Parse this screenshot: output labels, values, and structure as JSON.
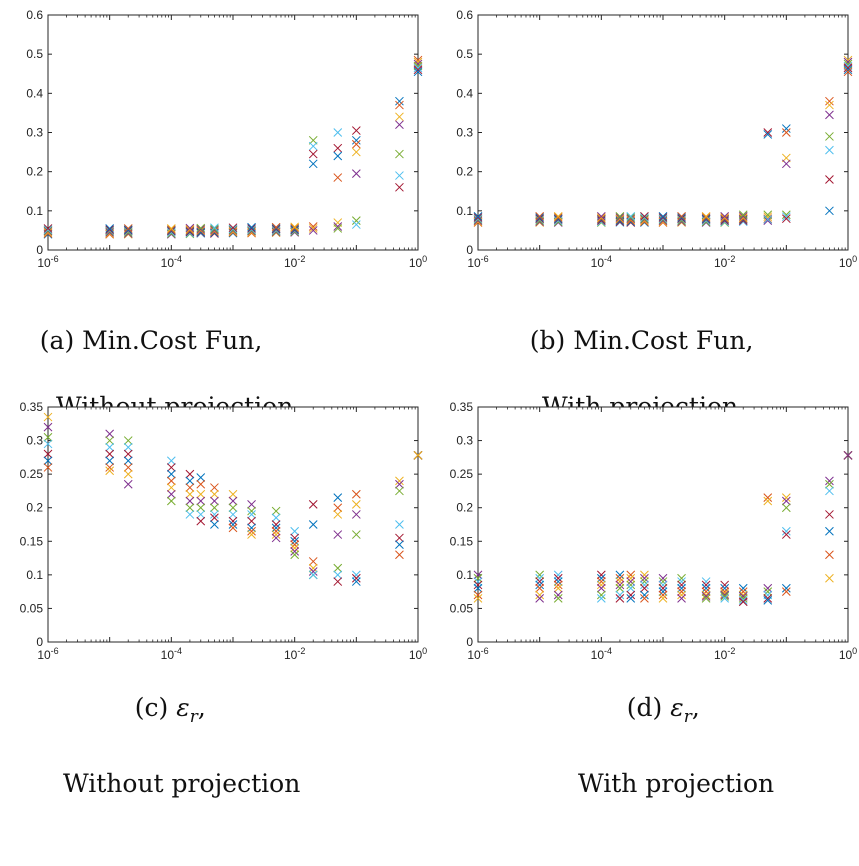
{
  "colors": [
    "#0072BD",
    "#D95319",
    "#EDB120",
    "#7E2F8E",
    "#77AC30",
    "#4DBEEE",
    "#A2142F"
  ],
  "panels": [
    {
      "id": "a",
      "caption": {
        "prefix": "(a) ",
        "line1": "Min.Cost Fun,",
        "line2": "Without projection"
      },
      "chart_data": {
        "type": "scatter",
        "marker": "x",
        "xscale": "log",
        "xlim": [
          1e-06,
          1
        ],
        "ylim": [
          0,
          0.6
        ],
        "xticks": [
          "10-6",
          "10-4",
          "10-2",
          "100"
        ],
        "yticks": [
          "0",
          "0.1",
          "0.2",
          "0.3",
          "0.4",
          "0.5",
          "0.6"
        ],
        "groups": [
          {
            "x": 1e-06,
            "y": [
              0.04,
              0.042,
              0.045,
              0.048,
              0.05,
              0.052,
              0.055
            ]
          },
          {
            "x": 1e-05,
            "y": [
              0.04,
              0.042,
              0.045,
              0.048,
              0.05,
              0.052,
              0.055
            ]
          },
          {
            "x": 2e-05,
            "y": [
              0.04,
              0.042,
              0.045,
              0.048,
              0.05,
              0.052,
              0.055
            ]
          },
          {
            "x": 0.0001,
            "y": [
              0.04,
              0.042,
              0.045,
              0.048,
              0.05,
              0.052,
              0.055
            ]
          },
          {
            "x": 0.0002,
            "y": [
              0.041,
              0.043,
              0.046,
              0.048,
              0.05,
              0.053,
              0.056
            ]
          },
          {
            "x": 0.0003,
            "y": [
              0.042,
              0.044,
              0.046,
              0.049,
              0.051,
              0.053,
              0.056
            ]
          },
          {
            "x": 0.0005,
            "y": [
              0.042,
              0.044,
              0.047,
              0.049,
              0.051,
              0.054,
              0.057
            ]
          },
          {
            "x": 0.001,
            "y": [
              0.043,
              0.045,
              0.047,
              0.05,
              0.052,
              0.054,
              0.057
            ]
          },
          {
            "x": 0.002,
            "y": [
              0.043,
              0.045,
              0.048,
              0.05,
              0.052,
              0.055,
              0.058
            ]
          },
          {
            "x": 0.005,
            "y": [
              0.044,
              0.046,
              0.048,
              0.05,
              0.053,
              0.055,
              0.058
            ]
          },
          {
            "x": 0.01,
            "y": [
              0.045,
              0.047,
              0.049,
              0.051,
              0.053,
              0.056,
              0.059
            ]
          },
          {
            "x": 0.02,
            "y": [
              0.28,
              0.265,
              0.245,
              0.22,
              0.06,
              0.055,
              0.05
            ]
          },
          {
            "x": 0.05,
            "y": [
              0.3,
              0.26,
              0.24,
              0.185,
              0.07,
              0.06,
              0.055
            ]
          },
          {
            "x": 0.1,
            "y": [
              0.305,
              0.28,
              0.27,
              0.25,
              0.195,
              0.075,
              0.065
            ]
          },
          {
            "x": 0.5,
            "y": [
              0.38,
              0.37,
              0.34,
              0.32,
              0.245,
              0.19,
              0.16
            ]
          },
          {
            "x": 1,
            "y": [
              0.485,
              0.48,
              0.475,
              0.47,
              0.465,
              0.46,
              0.455
            ]
          }
        ]
      }
    },
    {
      "id": "b",
      "caption": {
        "prefix": "(b) ",
        "line1": "Min.Cost Fun,",
        "line2": "With projection"
      },
      "chart_data": {
        "type": "scatter",
        "marker": "x",
        "xscale": "log",
        "xlim": [
          1e-06,
          1
        ],
        "ylim": [
          0,
          0.6
        ],
        "xticks": [
          "10-6",
          "10-4",
          "10-2",
          "100"
        ],
        "yticks": [
          "0",
          "0.1",
          "0.2",
          "0.3",
          "0.4",
          "0.5",
          "0.6"
        ],
        "groups": [
          {
            "x": 1e-06,
            "y": [
              0.07,
              0.072,
              0.075,
              0.078,
              0.08,
              0.083,
              0.086
            ]
          },
          {
            "x": 1e-05,
            "y": [
              0.07,
              0.072,
              0.075,
              0.078,
              0.08,
              0.083,
              0.086
            ]
          },
          {
            "x": 2e-05,
            "y": [
              0.07,
              0.072,
              0.075,
              0.078,
              0.08,
              0.083,
              0.086
            ]
          },
          {
            "x": 0.0001,
            "y": [
              0.07,
              0.072,
              0.075,
              0.078,
              0.08,
              0.083,
              0.086
            ]
          },
          {
            "x": 0.0002,
            "y": [
              0.07,
              0.072,
              0.075,
              0.078,
              0.08,
              0.083,
              0.086
            ]
          },
          {
            "x": 0.0003,
            "y": [
              0.07,
              0.072,
              0.075,
              0.078,
              0.08,
              0.083,
              0.086
            ]
          },
          {
            "x": 0.0005,
            "y": [
              0.07,
              0.072,
              0.075,
              0.078,
              0.08,
              0.083,
              0.086
            ]
          },
          {
            "x": 0.001,
            "y": [
              0.07,
              0.072,
              0.075,
              0.078,
              0.08,
              0.083,
              0.086
            ]
          },
          {
            "x": 0.002,
            "y": [
              0.07,
              0.072,
              0.075,
              0.078,
              0.08,
              0.083,
              0.086
            ]
          },
          {
            "x": 0.005,
            "y": [
              0.07,
              0.072,
              0.075,
              0.078,
              0.08,
              0.083,
              0.086
            ]
          },
          {
            "x": 0.01,
            "y": [
              0.07,
              0.072,
              0.075,
              0.078,
              0.08,
              0.083,
              0.086
            ]
          },
          {
            "x": 0.02,
            "y": [
              0.072,
              0.075,
              0.078,
              0.08,
              0.083,
              0.086,
              0.09
            ]
          },
          {
            "x": 0.05,
            "y": [
              0.3,
              0.295,
              0.08,
              0.085,
              0.075,
              0.09,
              0.078
            ]
          },
          {
            "x": 0.1,
            "y": [
              0.31,
              0.3,
              0.235,
              0.22,
              0.09,
              0.085,
              0.08
            ]
          },
          {
            "x": 0.5,
            "y": [
              0.38,
              0.37,
              0.345,
              0.29,
              0.255,
              0.18,
              0.1
            ]
          },
          {
            "x": 1,
            "y": [
              0.485,
              0.48,
              0.475,
              0.47,
              0.465,
              0.46,
              0.455
            ]
          }
        ]
      }
    },
    {
      "id": "c",
      "caption": {
        "prefix": "(c) ",
        "symbol": "ε",
        "sub": "r",
        "line1": ",",
        "line2": "Without projection"
      },
      "chart_data": {
        "type": "scatter",
        "marker": "x",
        "xscale": "log",
        "xlim": [
          1e-06,
          1
        ],
        "ylim": [
          0,
          0.35
        ],
        "xticks": [
          "10-6",
          "10-4",
          "10-2",
          "100"
        ],
        "yticks": [
          "0",
          "0.05",
          "0.1",
          "0.15",
          "0.2",
          "0.25",
          "0.3",
          "0.35"
        ],
        "groups": [
          {
            "x": 1e-06,
            "y": [
              0.335,
              0.32,
              0.305,
              0.295,
              0.28,
              0.27,
              0.26
            ]
          },
          {
            "x": 1e-05,
            "y": [
              0.31,
              0.3,
              0.29,
              0.28,
              0.27,
              0.26,
              0.255
            ]
          },
          {
            "x": 2e-05,
            "y": [
              0.3,
              0.29,
              0.28,
              0.27,
              0.26,
              0.25,
              0.235
            ]
          },
          {
            "x": 0.0001,
            "y": [
              0.27,
              0.26,
              0.25,
              0.24,
              0.23,
              0.22,
              0.21
            ]
          },
          {
            "x": 0.0002,
            "y": [
              0.25,
              0.24,
              0.23,
              0.22,
              0.21,
              0.2,
              0.19
            ]
          },
          {
            "x": 0.0003,
            "y": [
              0.245,
              0.235,
              0.22,
              0.21,
              0.2,
              0.19,
              0.18
            ]
          },
          {
            "x": 0.0005,
            "y": [
              0.23,
              0.22,
              0.21,
              0.2,
              0.19,
              0.185,
              0.175
            ]
          },
          {
            "x": 0.001,
            "y": [
              0.22,
              0.21,
              0.2,
              0.19,
              0.18,
              0.175,
              0.17
            ]
          },
          {
            "x": 0.002,
            "y": [
              0.205,
              0.195,
              0.19,
              0.18,
              0.17,
              0.165,
              0.16
            ]
          },
          {
            "x": 0.005,
            "y": [
              0.195,
              0.185,
              0.175,
              0.17,
              0.165,
              0.16,
              0.155
            ]
          },
          {
            "x": 0.01,
            "y": [
              0.165,
              0.155,
              0.15,
              0.145,
              0.14,
              0.135,
              0.13
            ]
          },
          {
            "x": 0.02,
            "y": [
              0.205,
              0.175,
              0.12,
              0.11,
              0.105,
              0.1,
              0.1
            ]
          },
          {
            "x": 0.05,
            "y": [
              0.215,
              0.2,
              0.19,
              0.16,
              0.11,
              0.1,
              0.09
            ]
          },
          {
            "x": 0.1,
            "y": [
              0.22,
              0.205,
              0.19,
              0.16,
              0.1,
              0.095,
              0.09
            ]
          },
          {
            "x": 0.5,
            "y": [
              0.24,
              0.235,
              0.225,
              0.175,
              0.155,
              0.145,
              0.13
            ]
          },
          {
            "x": 1,
            "y": [
              0.278,
              0.278,
              0.278,
              0.278,
              0.278,
              0.278,
              0.278
            ]
          }
        ]
      }
    },
    {
      "id": "d",
      "caption": {
        "prefix": "(d) ",
        "symbol": "ε",
        "sub": "r",
        "line1": ",",
        "line2": "With projection"
      },
      "chart_data": {
        "type": "scatter",
        "marker": "x",
        "xscale": "log",
        "xlim": [
          1e-06,
          1
        ],
        "ylim": [
          0,
          0.35
        ],
        "xticks": [
          "10-6",
          "10-4",
          "10-2",
          "100"
        ],
        "yticks": [
          "0",
          "0.05",
          "0.1",
          "0.15",
          "0.2",
          "0.25",
          "0.3",
          "0.35"
        ],
        "groups": [
          {
            "x": 1e-06,
            "y": [
              0.1,
              0.095,
              0.09,
              0.085,
              0.08,
              0.07,
              0.065
            ]
          },
          {
            "x": 1e-05,
            "y": [
              0.1,
              0.095,
              0.09,
              0.085,
              0.08,
              0.07,
              0.065
            ]
          },
          {
            "x": 2e-05,
            "y": [
              0.1,
              0.095,
              0.09,
              0.085,
              0.08,
              0.07,
              0.065
            ]
          },
          {
            "x": 0.0001,
            "y": [
              0.1,
              0.095,
              0.09,
              0.085,
              0.08,
              0.07,
              0.065
            ]
          },
          {
            "x": 0.0002,
            "y": [
              0.1,
              0.095,
              0.09,
              0.085,
              0.08,
              0.07,
              0.065
            ]
          },
          {
            "x": 0.0003,
            "y": [
              0.1,
              0.095,
              0.09,
              0.085,
              0.08,
              0.07,
              0.065
            ]
          },
          {
            "x": 0.0005,
            "y": [
              0.1,
              0.095,
              0.09,
              0.085,
              0.08,
              0.07,
              0.065
            ]
          },
          {
            "x": 0.001,
            "y": [
              0.095,
              0.09,
              0.085,
              0.08,
              0.075,
              0.07,
              0.065
            ]
          },
          {
            "x": 0.002,
            "y": [
              0.095,
              0.09,
              0.085,
              0.08,
              0.075,
              0.07,
              0.065
            ]
          },
          {
            "x": 0.005,
            "y": [
              0.09,
              0.085,
              0.08,
              0.075,
              0.07,
              0.068,
              0.065
            ]
          },
          {
            "x": 0.01,
            "y": [
              0.085,
              0.08,
              0.075,
              0.072,
              0.07,
              0.068,
              0.065
            ]
          },
          {
            "x": 0.02,
            "y": [
              0.08,
              0.075,
              0.07,
              0.068,
              0.065,
              0.062,
              0.06
            ]
          },
          {
            "x": 0.05,
            "y": [
              0.215,
              0.21,
              0.08,
              0.075,
              0.07,
              0.065,
              0.062
            ]
          },
          {
            "x": 0.1,
            "y": [
              0.215,
              0.21,
              0.2,
              0.165,
              0.16,
              0.08,
              0.075
            ]
          },
          {
            "x": 0.5,
            "y": [
              0.24,
              0.235,
              0.225,
              0.19,
              0.165,
              0.13,
              0.095
            ]
          },
          {
            "x": 1,
            "y": [
              0.278,
              0.278,
              0.278,
              0.278,
              0.278,
              0.278,
              0.278
            ]
          }
        ]
      }
    }
  ]
}
